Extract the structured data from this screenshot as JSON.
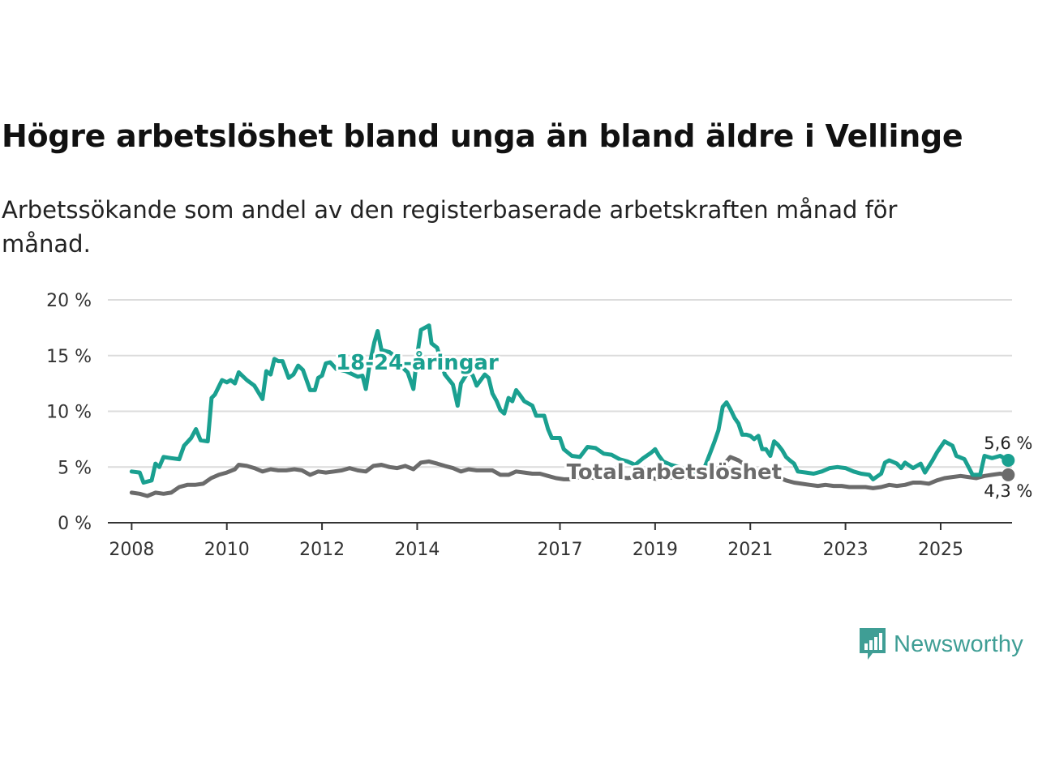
{
  "header": {
    "title": "Högre arbetslöshet bland unga än bland äldre i Vellinge",
    "subtitle": "Arbetssökande som andel av den registerbaserade arbetskraften månad för månad."
  },
  "brand": {
    "name": "Newsworthy",
    "color": "#3f9e95"
  },
  "chart_data": {
    "type": "line",
    "title": "Högre arbetslöshet bland unga än bland äldre i Vellinge",
    "subtitle": "Arbetssökande som andel av den registerbaserade arbetskraften månad för månad.",
    "xlabel": "",
    "ylabel": "",
    "xlim": [
      2007.5,
      2026.5
    ],
    "ylim": [
      0,
      20
    ],
    "x_ticks": [
      2008,
      2010,
      2012,
      2014,
      2017,
      2019,
      2021,
      2023,
      2025
    ],
    "x_tick_labels": [
      "2008",
      "2010",
      "2012",
      "2014",
      "2017",
      "2019",
      "2021",
      "2023",
      "2025"
    ],
    "y_ticks": [
      0,
      5,
      10,
      15,
      20
    ],
    "y_tick_labels": [
      "0 %",
      "5 %",
      "10 %",
      "15 %",
      "20 %"
    ],
    "grid": true,
    "series": [
      {
        "name": "18-24-åringar",
        "color": "#1aa090",
        "end_label": "5,6 %",
        "points": [
          [
            2008.0,
            4.6
          ],
          [
            2008.17,
            4.5
          ],
          [
            2008.25,
            3.6
          ],
          [
            2008.42,
            3.8
          ],
          [
            2008.5,
            5.3
          ],
          [
            2008.58,
            5.0
          ],
          [
            2008.67,
            5.9
          ],
          [
            2008.83,
            5.8
          ],
          [
            2009.0,
            5.7
          ],
          [
            2009.1,
            6.9
          ],
          [
            2009.25,
            7.6
          ],
          [
            2009.35,
            8.4
          ],
          [
            2009.45,
            7.4
          ],
          [
            2009.6,
            7.3
          ],
          [
            2009.68,
            11.2
          ],
          [
            2009.75,
            11.5
          ],
          [
            2009.9,
            12.8
          ],
          [
            2010.0,
            12.6
          ],
          [
            2010.08,
            12.8
          ],
          [
            2010.17,
            12.5
          ],
          [
            2010.25,
            13.5
          ],
          [
            2010.42,
            12.8
          ],
          [
            2010.58,
            12.3
          ],
          [
            2010.75,
            11.1
          ],
          [
            2010.83,
            13.6
          ],
          [
            2010.92,
            13.3
          ],
          [
            2011.0,
            14.7
          ],
          [
            2011.08,
            14.5
          ],
          [
            2011.17,
            14.5
          ],
          [
            2011.3,
            13.0
          ],
          [
            2011.4,
            13.3
          ],
          [
            2011.5,
            14.1
          ],
          [
            2011.6,
            13.7
          ],
          [
            2011.75,
            11.9
          ],
          [
            2011.85,
            11.9
          ],
          [
            2011.92,
            13.0
          ],
          [
            2012.0,
            13.2
          ],
          [
            2012.08,
            14.3
          ],
          [
            2012.17,
            14.4
          ],
          [
            2012.3,
            13.8
          ],
          [
            2012.5,
            13.6
          ],
          [
            2012.6,
            13.4
          ],
          [
            2012.75,
            13.1
          ],
          [
            2012.85,
            13.2
          ],
          [
            2012.92,
            12.0
          ],
          [
            2013.0,
            14.2
          ],
          [
            2013.1,
            16.2
          ],
          [
            2013.17,
            17.2
          ],
          [
            2013.25,
            15.5
          ],
          [
            2013.42,
            15.3
          ],
          [
            2013.58,
            14.8
          ],
          [
            2013.7,
            13.9
          ],
          [
            2013.8,
            13.5
          ],
          [
            2013.92,
            12.0
          ],
          [
            2014.0,
            15.0
          ],
          [
            2014.08,
            17.3
          ],
          [
            2014.25,
            17.7
          ],
          [
            2014.3,
            16.1
          ],
          [
            2014.42,
            15.7
          ],
          [
            2014.5,
            14.5
          ],
          [
            2014.58,
            13.3
          ],
          [
            2014.75,
            12.4
          ],
          [
            2014.85,
            10.5
          ],
          [
            2014.92,
            12.5
          ],
          [
            2015.08,
            13.6
          ],
          [
            2015.17,
            13.2
          ],
          [
            2015.25,
            12.3
          ],
          [
            2015.42,
            13.3
          ],
          [
            2015.5,
            13.0
          ],
          [
            2015.58,
            11.6
          ],
          [
            2015.67,
            10.9
          ],
          [
            2015.75,
            10.1
          ],
          [
            2015.83,
            9.8
          ],
          [
            2015.92,
            11.2
          ],
          [
            2016.0,
            10.9
          ],
          [
            2016.08,
            11.9
          ],
          [
            2016.17,
            11.4
          ],
          [
            2016.25,
            10.9
          ],
          [
            2016.42,
            10.5
          ],
          [
            2016.5,
            9.6
          ],
          [
            2016.67,
            9.6
          ],
          [
            2016.75,
            8.4
          ],
          [
            2016.83,
            7.6
          ],
          [
            2017.0,
            7.6
          ],
          [
            2017.08,
            6.6
          ],
          [
            2017.25,
            6.0
          ],
          [
            2017.42,
            5.9
          ],
          [
            2017.58,
            6.8
          ],
          [
            2017.75,
            6.7
          ],
          [
            2017.92,
            6.2
          ],
          [
            2018.08,
            6.1
          ],
          [
            2018.25,
            5.7
          ],
          [
            2018.42,
            5.5
          ],
          [
            2018.58,
            5.2
          ],
          [
            2018.75,
            5.8
          ],
          [
            2018.92,
            6.3
          ],
          [
            2019.0,
            6.6
          ],
          [
            2019.08,
            6.0
          ],
          [
            2019.17,
            5.5
          ],
          [
            2019.33,
            5.2
          ],
          [
            2019.5,
            5.0
          ],
          [
            2019.67,
            4.8
          ],
          [
            2019.83,
            4.6
          ],
          [
            2020.0,
            4.6
          ],
          [
            2020.08,
            5.4
          ],
          [
            2020.17,
            6.4
          ],
          [
            2020.25,
            7.3
          ],
          [
            2020.33,
            8.3
          ],
          [
            2020.42,
            10.4
          ],
          [
            2020.5,
            10.8
          ],
          [
            2020.58,
            10.2
          ],
          [
            2020.67,
            9.4
          ],
          [
            2020.75,
            8.9
          ],
          [
            2020.83,
            7.9
          ],
          [
            2020.92,
            7.9
          ],
          [
            2021.0,
            7.8
          ],
          [
            2021.08,
            7.5
          ],
          [
            2021.17,
            7.8
          ],
          [
            2021.25,
            6.6
          ],
          [
            2021.33,
            6.6
          ],
          [
            2021.42,
            6.0
          ],
          [
            2021.5,
            7.3
          ],
          [
            2021.58,
            7.0
          ],
          [
            2021.67,
            6.5
          ],
          [
            2021.75,
            5.9
          ],
          [
            2021.83,
            5.6
          ],
          [
            2021.92,
            5.3
          ],
          [
            2022.0,
            4.6
          ],
          [
            2022.17,
            4.5
          ],
          [
            2022.33,
            4.4
          ],
          [
            2022.5,
            4.6
          ],
          [
            2022.67,
            4.9
          ],
          [
            2022.83,
            5.0
          ],
          [
            2023.0,
            4.9
          ],
          [
            2023.17,
            4.6
          ],
          [
            2023.33,
            4.4
          ],
          [
            2023.5,
            4.3
          ],
          [
            2023.58,
            3.9
          ],
          [
            2023.75,
            4.4
          ],
          [
            2023.83,
            5.4
          ],
          [
            2023.92,
            5.6
          ],
          [
            2024.08,
            5.3
          ],
          [
            2024.17,
            4.9
          ],
          [
            2024.25,
            5.4
          ],
          [
            2024.42,
            4.9
          ],
          [
            2024.58,
            5.3
          ],
          [
            2024.67,
            4.5
          ],
          [
            2024.83,
            5.6
          ],
          [
            2024.92,
            6.3
          ],
          [
            2025.08,
            7.3
          ],
          [
            2025.25,
            6.9
          ],
          [
            2025.33,
            6.0
          ],
          [
            2025.5,
            5.7
          ],
          [
            2025.67,
            4.3
          ],
          [
            2025.83,
            4.3
          ],
          [
            2025.92,
            6.0
          ],
          [
            2026.08,
            5.8
          ],
          [
            2026.25,
            6.0
          ],
          [
            2026.42,
            5.6
          ]
        ]
      },
      {
        "name": "Total arbetslöshet",
        "color": "#6b6b6b",
        "end_label": "4,3 %",
        "points": [
          [
            2008.0,
            2.7
          ],
          [
            2008.17,
            2.6
          ],
          [
            2008.33,
            2.4
          ],
          [
            2008.5,
            2.7
          ],
          [
            2008.67,
            2.6
          ],
          [
            2008.83,
            2.7
          ],
          [
            2009.0,
            3.2
          ],
          [
            2009.17,
            3.4
          ],
          [
            2009.33,
            3.4
          ],
          [
            2009.5,
            3.5
          ],
          [
            2009.67,
            4.0
          ],
          [
            2009.83,
            4.3
          ],
          [
            2010.0,
            4.5
          ],
          [
            2010.17,
            4.8
          ],
          [
            2010.25,
            5.2
          ],
          [
            2010.42,
            5.1
          ],
          [
            2010.58,
            4.9
          ],
          [
            2010.75,
            4.6
          ],
          [
            2010.92,
            4.8
          ],
          [
            2011.08,
            4.7
          ],
          [
            2011.25,
            4.7
          ],
          [
            2011.42,
            4.8
          ],
          [
            2011.58,
            4.7
          ],
          [
            2011.75,
            4.3
          ],
          [
            2011.92,
            4.6
          ],
          [
            2012.08,
            4.5
          ],
          [
            2012.25,
            4.6
          ],
          [
            2012.42,
            4.7
          ],
          [
            2012.58,
            4.9
          ],
          [
            2012.75,
            4.7
          ],
          [
            2012.92,
            4.6
          ],
          [
            2013.08,
            5.1
          ],
          [
            2013.25,
            5.2
          ],
          [
            2013.42,
            5.0
          ],
          [
            2013.58,
            4.9
          ],
          [
            2013.75,
            5.1
          ],
          [
            2013.92,
            4.8
          ],
          [
            2014.08,
            5.4
          ],
          [
            2014.25,
            5.5
          ],
          [
            2014.42,
            5.3
          ],
          [
            2014.58,
            5.1
          ],
          [
            2014.75,
            4.9
          ],
          [
            2014.92,
            4.6
          ],
          [
            2015.08,
            4.8
          ],
          [
            2015.25,
            4.7
          ],
          [
            2015.42,
            4.7
          ],
          [
            2015.58,
            4.7
          ],
          [
            2015.75,
            4.3
          ],
          [
            2015.92,
            4.3
          ],
          [
            2016.08,
            4.6
          ],
          [
            2016.25,
            4.5
          ],
          [
            2016.42,
            4.4
          ],
          [
            2016.58,
            4.4
          ],
          [
            2016.75,
            4.2
          ],
          [
            2016.92,
            4.0
          ],
          [
            2017.08,
            3.9
          ],
          [
            2017.25,
            3.9
          ],
          [
            2017.42,
            4.1
          ],
          [
            2017.58,
            4.1
          ],
          [
            2017.75,
            4.0
          ],
          [
            2017.92,
            4.2
          ],
          [
            2018.08,
            4.2
          ],
          [
            2018.25,
            4.1
          ],
          [
            2018.42,
            4.0
          ],
          [
            2018.58,
            4.1
          ],
          [
            2018.75,
            4.2
          ],
          [
            2018.92,
            4.0
          ],
          [
            2019.08,
            3.9
          ],
          [
            2019.25,
            4.0
          ],
          [
            2019.42,
            4.1
          ],
          [
            2019.58,
            4.0
          ],
          [
            2019.75,
            4.1
          ],
          [
            2019.92,
            4.2
          ],
          [
            2020.08,
            4.3
          ],
          [
            2020.25,
            4.7
          ],
          [
            2020.42,
            5.1
          ],
          [
            2020.58,
            5.9
          ],
          [
            2020.75,
            5.6
          ],
          [
            2020.92,
            5.1
          ],
          [
            2021.08,
            4.7
          ],
          [
            2021.25,
            4.5
          ],
          [
            2021.42,
            4.3
          ],
          [
            2021.58,
            4.1
          ],
          [
            2021.75,
            3.8
          ],
          [
            2021.92,
            3.6
          ],
          [
            2022.08,
            3.5
          ],
          [
            2022.25,
            3.4
          ],
          [
            2022.42,
            3.3
          ],
          [
            2022.58,
            3.4
          ],
          [
            2022.75,
            3.3
          ],
          [
            2022.92,
            3.3
          ],
          [
            2023.08,
            3.2
          ],
          [
            2023.25,
            3.2
          ],
          [
            2023.42,
            3.2
          ],
          [
            2023.58,
            3.1
          ],
          [
            2023.75,
            3.2
          ],
          [
            2023.92,
            3.4
          ],
          [
            2024.08,
            3.3
          ],
          [
            2024.25,
            3.4
          ],
          [
            2024.42,
            3.6
          ],
          [
            2024.58,
            3.6
          ],
          [
            2024.75,
            3.5
          ],
          [
            2024.92,
            3.8
          ],
          [
            2025.08,
            4.0
          ],
          [
            2025.25,
            4.1
          ],
          [
            2025.42,
            4.2
          ],
          [
            2025.58,
            4.1
          ],
          [
            2025.75,
            4.0
          ],
          [
            2025.92,
            4.2
          ],
          [
            2026.08,
            4.3
          ],
          [
            2026.25,
            4.4
          ],
          [
            2026.42,
            4.3
          ]
        ]
      }
    ],
    "annotations": [
      {
        "text": "18-24-åringar",
        "series": "18-24-åringar",
        "x": 2014.0,
        "y": 14.4
      },
      {
        "text": "Total arbetslöshet",
        "series": "Total arbetslöshet",
        "x": 2019.4,
        "y": 4.6
      }
    ]
  }
}
